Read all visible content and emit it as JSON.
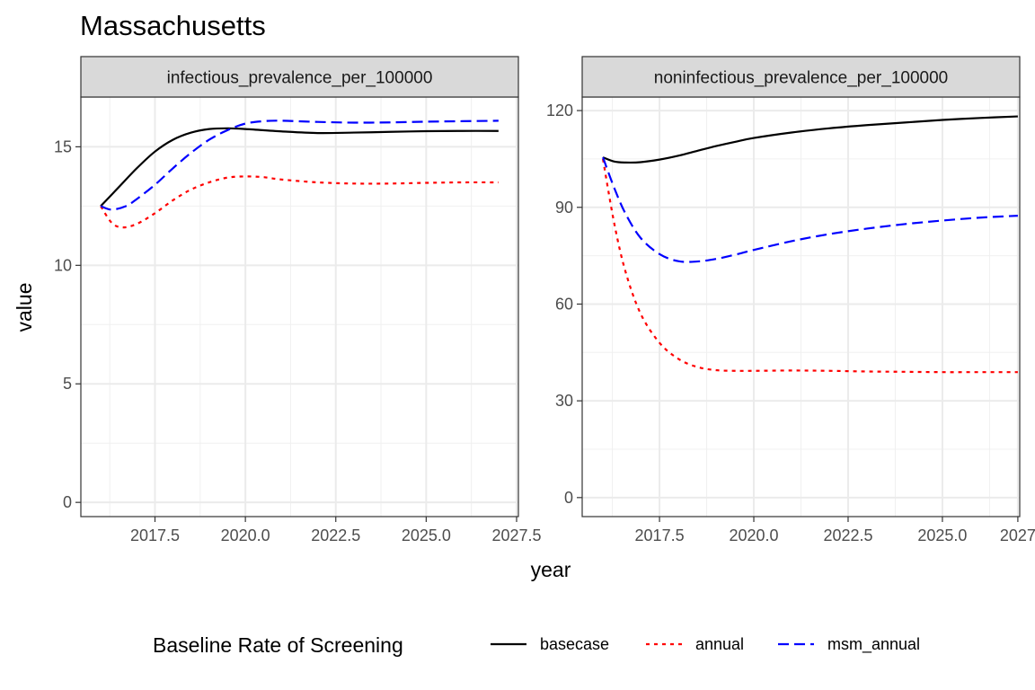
{
  "chart_data": {
    "type": "line",
    "title": "Massachusetts",
    "xlabel": "year",
    "ylabel": "value",
    "legend_title": "Baseline Rate of Screening",
    "legend_position": "bottom",
    "grid": true,
    "series_styles": [
      {
        "name": "basecase",
        "color": "#000000",
        "dash": "solid"
      },
      {
        "name": "annual",
        "color": "#ff0000",
        "dash": "dotted"
      },
      {
        "name": "msm_annual",
        "color": "#0000ff",
        "dash": "dashed"
      }
    ],
    "panels": [
      {
        "strip": "infectious_prevalence_per_100000",
        "xlim": [
          2015.45,
          2027.55
        ],
        "ylim": [
          -0.6,
          17.1
        ],
        "x_ticks": [
          2017.5,
          2020.0,
          2022.5,
          2025.0,
          2027.5
        ],
        "x_tick_labels": [
          "2017.5",
          "2020.0",
          "2022.5",
          "2025.0",
          "2027.5"
        ],
        "y_ticks": [
          0,
          5,
          10,
          15
        ],
        "y_tick_labels": [
          "0",
          "5",
          "10",
          "15"
        ],
        "series": [
          {
            "name": "basecase",
            "x": [
              2016.0,
              2016.5,
              2017.0,
              2017.5,
              2018.0,
              2018.5,
              2019.0,
              2019.5,
              2020.0,
              2021.0,
              2022.0,
              2023.0,
              2024.0,
              2025.0,
              2026.0,
              2027.0
            ],
            "y": [
              12.5,
              13.3,
              14.1,
              14.8,
              15.3,
              15.6,
              15.75,
              15.78,
              15.75,
              15.65,
              15.58,
              15.6,
              15.63,
              15.66,
              15.67,
              15.67
            ]
          },
          {
            "name": "annual",
            "x": [
              2016.0,
              2016.3,
              2016.6,
              2017.0,
              2017.5,
              2018.0,
              2018.5,
              2019.0,
              2019.5,
              2020.0,
              2020.5,
              2021.0,
              2022.0,
              2023.0,
              2024.0,
              2025.0,
              2026.0,
              2027.0
            ],
            "y": [
              12.5,
              11.8,
              11.6,
              11.75,
              12.2,
              12.75,
              13.2,
              13.5,
              13.7,
              13.75,
              13.72,
              13.62,
              13.5,
              13.45,
              13.45,
              13.48,
              13.5,
              13.5
            ]
          },
          {
            "name": "msm_annual",
            "x": [
              2016.0,
              2016.3,
              2016.7,
              2017.0,
              2017.5,
              2018.0,
              2018.5,
              2019.0,
              2019.5,
              2020.0,
              2020.5,
              2021.0,
              2022.0,
              2023.0,
              2024.0,
              2025.0,
              2026.0,
              2027.0
            ],
            "y": [
              12.5,
              12.35,
              12.5,
              12.8,
              13.4,
              14.1,
              14.75,
              15.3,
              15.7,
              15.98,
              16.08,
              16.1,
              16.05,
              16.02,
              16.03,
              16.06,
              16.08,
              16.1
            ]
          }
        ]
      },
      {
        "strip": "noninfectious_prevalence_per_100000",
        "xlim": [
          2015.45,
          2027.05
        ],
        "ylim": [
          -5.9,
          124.2
        ],
        "x_ticks": [
          2017.5,
          2020.0,
          2022.5,
          2025.0,
          2027.0
        ],
        "x_tick_labels": [
          "2017.5",
          "2020.0",
          "2022.5",
          "2025.0",
          "2027"
        ],
        "y_ticks": [
          0,
          30,
          60,
          90,
          120
        ],
        "y_tick_labels": [
          "0",
          "30",
          "60",
          "90",
          "120"
        ],
        "series": [
          {
            "name": "basecase",
            "x": [
              2016.0,
              2016.3,
              2016.6,
              2017.0,
              2017.5,
              2018.0,
              2018.5,
              2019.0,
              2019.5,
              2020.0,
              2021.0,
              2022.0,
              2023.0,
              2024.0,
              2025.0,
              2026.0,
              2027.0
            ],
            "y": [
              105.5,
              104.2,
              103.9,
              104.0,
              104.8,
              106.0,
              107.5,
              109.0,
              110.3,
              111.5,
              113.2,
              114.5,
              115.5,
              116.3,
              117.1,
              117.7,
              118.2
            ]
          },
          {
            "name": "annual",
            "x": [
              2016.0,
              2016.3,
              2016.6,
              2017.0,
              2017.5,
              2018.0,
              2018.5,
              2019.0,
              2019.5,
              2020.0,
              2021.0,
              2022.0,
              2023.0,
              2024.0,
              2025.0,
              2026.0,
              2027.0
            ],
            "y": [
              105.0,
              85.0,
              70.0,
              57.0,
              48.0,
              43.0,
              40.5,
              39.5,
              39.3,
              39.3,
              39.4,
              39.3,
              39.1,
              39.0,
              38.9,
              38.9,
              38.9
            ]
          },
          {
            "name": "msm_annual",
            "x": [
              2016.0,
              2016.3,
              2016.6,
              2017.0,
              2017.5,
              2018.0,
              2018.5,
              2019.0,
              2019.5,
              2020.0,
              2021.0,
              2022.0,
              2023.0,
              2024.0,
              2025.0,
              2026.0,
              2027.0
            ],
            "y": [
              105.5,
              96.0,
              88.0,
              80.5,
              75.5,
              73.3,
              73.2,
              74.0,
              75.3,
              76.8,
              79.5,
              81.7,
              83.4,
              84.8,
              85.9,
              86.8,
              87.4
            ]
          }
        ]
      }
    ]
  }
}
